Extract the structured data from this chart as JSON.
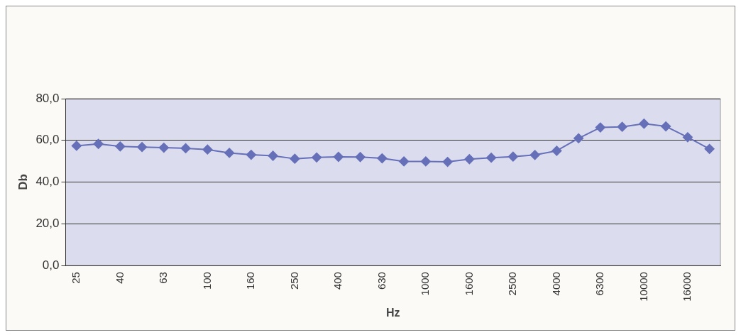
{
  "chart_data": {
    "type": "line",
    "xlabel": "Hz",
    "ylabel": "Db",
    "categories": [
      "25",
      null,
      "40",
      null,
      "63",
      null,
      "100",
      null,
      "160",
      null,
      "250",
      null,
      "400",
      null,
      "630",
      null,
      "1000",
      null,
      "1600",
      null,
      "2500",
      null,
      "4000",
      null,
      "6300",
      null,
      "10000",
      null,
      "16000",
      null
    ],
    "series": [
      {
        "color": "#6670b8",
        "values": [
          57.4,
          58.3,
          57.1,
          56.8,
          56.5,
          56.2,
          55.6,
          54.0,
          53.1,
          52.6,
          51.2,
          51.8,
          52.1,
          52.0,
          51.4,
          49.9,
          49.9,
          49.7,
          51.0,
          51.7,
          52.2,
          53.0,
          55.0,
          61.0,
          66.2,
          66.5,
          68.0,
          66.7,
          61.5,
          55.9
        ]
      }
    ],
    "ylim": [
      0,
      80
    ],
    "yticks": [
      {
        "value": 0,
        "label": "0,0"
      },
      {
        "value": 20,
        "label": "20,0"
      },
      {
        "value": 40,
        "label": "40,0"
      },
      {
        "value": 60,
        "label": "60,0"
      },
      {
        "value": 80,
        "label": "80,0"
      }
    ],
    "grid": "y",
    "legend": false,
    "marker": "diamond",
    "line_style": "solid"
  }
}
